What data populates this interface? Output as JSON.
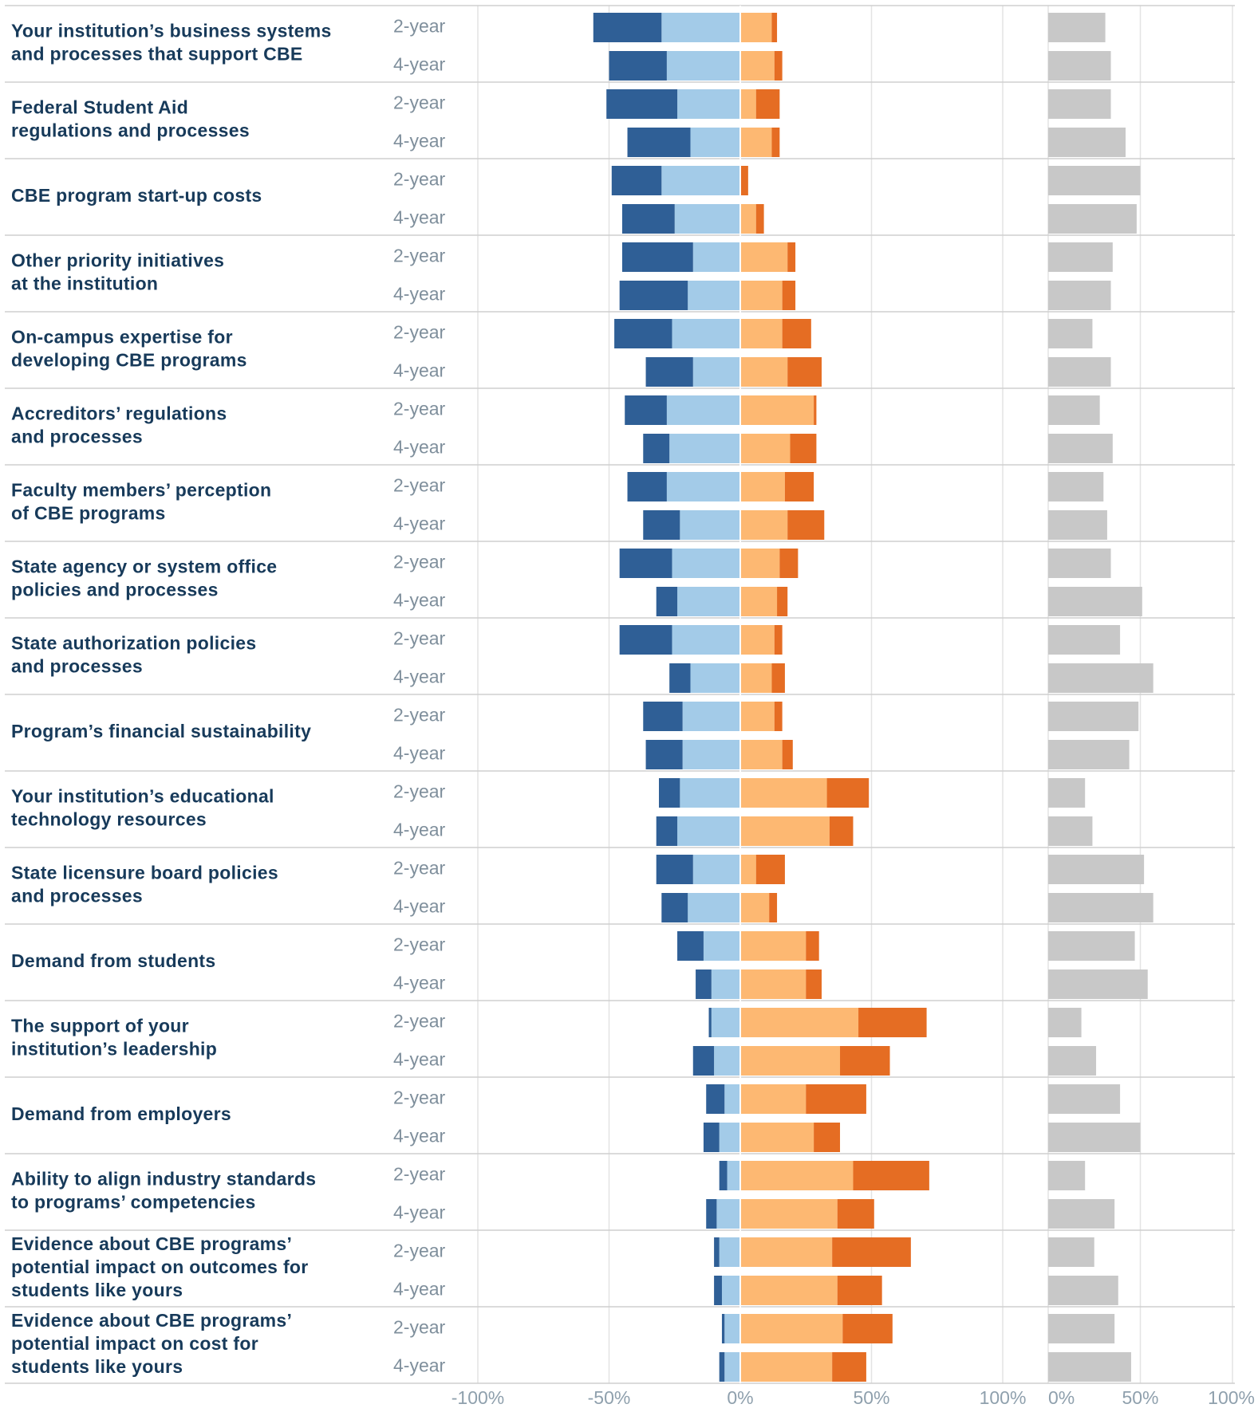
{
  "chart_data": {
    "type": "diverging-bar",
    "categories": [
      [
        "Your institution’s business systems",
        "and processes that support CBE"
      ],
      [
        "Federal Student Aid",
        "regulations and processes"
      ],
      [
        "CBE program start-up costs"
      ],
      [
        "Other priority initiatives",
        "at the institution"
      ],
      [
        "On-campus expertise for",
        "developing CBE programs"
      ],
      [
        "Accreditors’ regulations",
        "and processes"
      ],
      [
        "Faculty members’ perception",
        "of CBE programs"
      ],
      [
        "State agency or system office",
        "policies and processes"
      ],
      [
        "State authorization policies",
        "and processes"
      ],
      [
        "Program’s financial sustainability"
      ],
      [
        "Your institution’s educational",
        "technology resources"
      ],
      [
        "State licensure board policies",
        "and processes"
      ],
      [
        "Demand from students"
      ],
      [
        "The support of your",
        "institution’s leadership"
      ],
      [
        "Demand from employers"
      ],
      [
        "Ability to align industry standards",
        "to programs’ competencies"
      ],
      [
        "Evidence about CBE programs’",
        "potential impact on outcomes for",
        "students like yours"
      ],
      [
        "Evidence about CBE programs’",
        "potential impact on cost for",
        "students like yours"
      ]
    ],
    "groups": [
      "2-year",
      "4-year"
    ],
    "series": [
      {
        "color": "#a3cbe8",
        "values": [
          [
            -30,
            -28
          ],
          [
            -24,
            -19
          ],
          [
            -30,
            -25
          ],
          [
            -18,
            -20
          ],
          [
            -26,
            -18
          ],
          [
            -28,
            -27
          ],
          [
            -28,
            -23
          ],
          [
            -26,
            -24
          ],
          [
            -26,
            -19
          ],
          [
            -22,
            -22
          ],
          [
            -23,
            -24
          ],
          [
            -18,
            -20
          ],
          [
            -14,
            -11
          ],
          [
            -11,
            -10
          ],
          [
            -6,
            -8
          ],
          [
            -5,
            -9
          ],
          [
            -8,
            -7
          ],
          [
            -6,
            -6
          ]
        ]
      },
      {
        "color": "#2f5f96",
        "values": [
          [
            -26,
            -22
          ],
          [
            -27,
            -24
          ],
          [
            -19,
            -20
          ],
          [
            -27,
            -26
          ],
          [
            -22,
            -18
          ],
          [
            -16,
            -10
          ],
          [
            -15,
            -14
          ],
          [
            -20,
            -8
          ],
          [
            -20,
            -8
          ],
          [
            -15,
            -14
          ],
          [
            -8,
            -8
          ],
          [
            -14,
            -10
          ],
          [
            -10,
            -6
          ],
          [
            -1,
            -8
          ],
          [
            -7,
            -6
          ],
          [
            -3,
            -4
          ],
          [
            -2,
            -3
          ],
          [
            -1,
            -2
          ]
        ]
      },
      {
        "color": "#fdb872",
        "values": [
          [
            12,
            13
          ],
          [
            6,
            12
          ],
          [
            0,
            6
          ],
          [
            18,
            16
          ],
          [
            16,
            18
          ],
          [
            28,
            19
          ],
          [
            17,
            18
          ],
          [
            15,
            14
          ],
          [
            13,
            12
          ],
          [
            13,
            16
          ],
          [
            33,
            34
          ],
          [
            6,
            11
          ],
          [
            25,
            25
          ],
          [
            45,
            38
          ],
          [
            25,
            28
          ],
          [
            43,
            37
          ],
          [
            35,
            37
          ],
          [
            39,
            35
          ]
        ]
      },
      {
        "color": "#e56d23",
        "values": [
          [
            2,
            3
          ],
          [
            9,
            3
          ],
          [
            3,
            3
          ],
          [
            3,
            5
          ],
          [
            11,
            13
          ],
          [
            1,
            10
          ],
          [
            11,
            14
          ],
          [
            7,
            4
          ],
          [
            3,
            5
          ],
          [
            3,
            4
          ],
          [
            16,
            9
          ],
          [
            11,
            3
          ],
          [
            5,
            6
          ],
          [
            26,
            19
          ],
          [
            23,
            10
          ],
          [
            29,
            14
          ],
          [
            30,
            17
          ],
          [
            19,
            13
          ]
        ]
      }
    ],
    "xlim": [
      -100,
      100
    ],
    "xticks": [
      {
        "value": -100,
        "label": "-100%"
      },
      {
        "value": -50,
        "label": "-50%"
      },
      {
        "value": 0,
        "label": "0%"
      },
      {
        "value": 50,
        "label": "50%"
      },
      {
        "value": 100,
        "label": "100%"
      }
    ],
    "series2": {
      "color": "#c8c8c8",
      "values": [
        [
          31,
          34
        ],
        [
          34,
          42
        ],
        [
          50,
          48
        ],
        [
          35,
          34
        ],
        [
          24,
          34
        ],
        [
          28,
          35
        ],
        [
          30,
          32
        ],
        [
          34,
          51
        ],
        [
          39,
          57
        ],
        [
          49,
          44
        ],
        [
          20,
          24
        ],
        [
          52,
          57
        ],
        [
          47,
          54
        ],
        [
          18,
          26
        ],
        [
          39,
          50
        ],
        [
          20,
          36
        ],
        [
          25,
          38
        ],
        [
          36,
          45
        ]
      ]
    },
    "x2lim": [
      0,
      100
    ],
    "x2ticks": [
      {
        "value": 0,
        "label": "0%"
      },
      {
        "value": 50,
        "label": "50%"
      },
      {
        "value": 100,
        "label": "100%"
      }
    ],
    "grid": true
  }
}
